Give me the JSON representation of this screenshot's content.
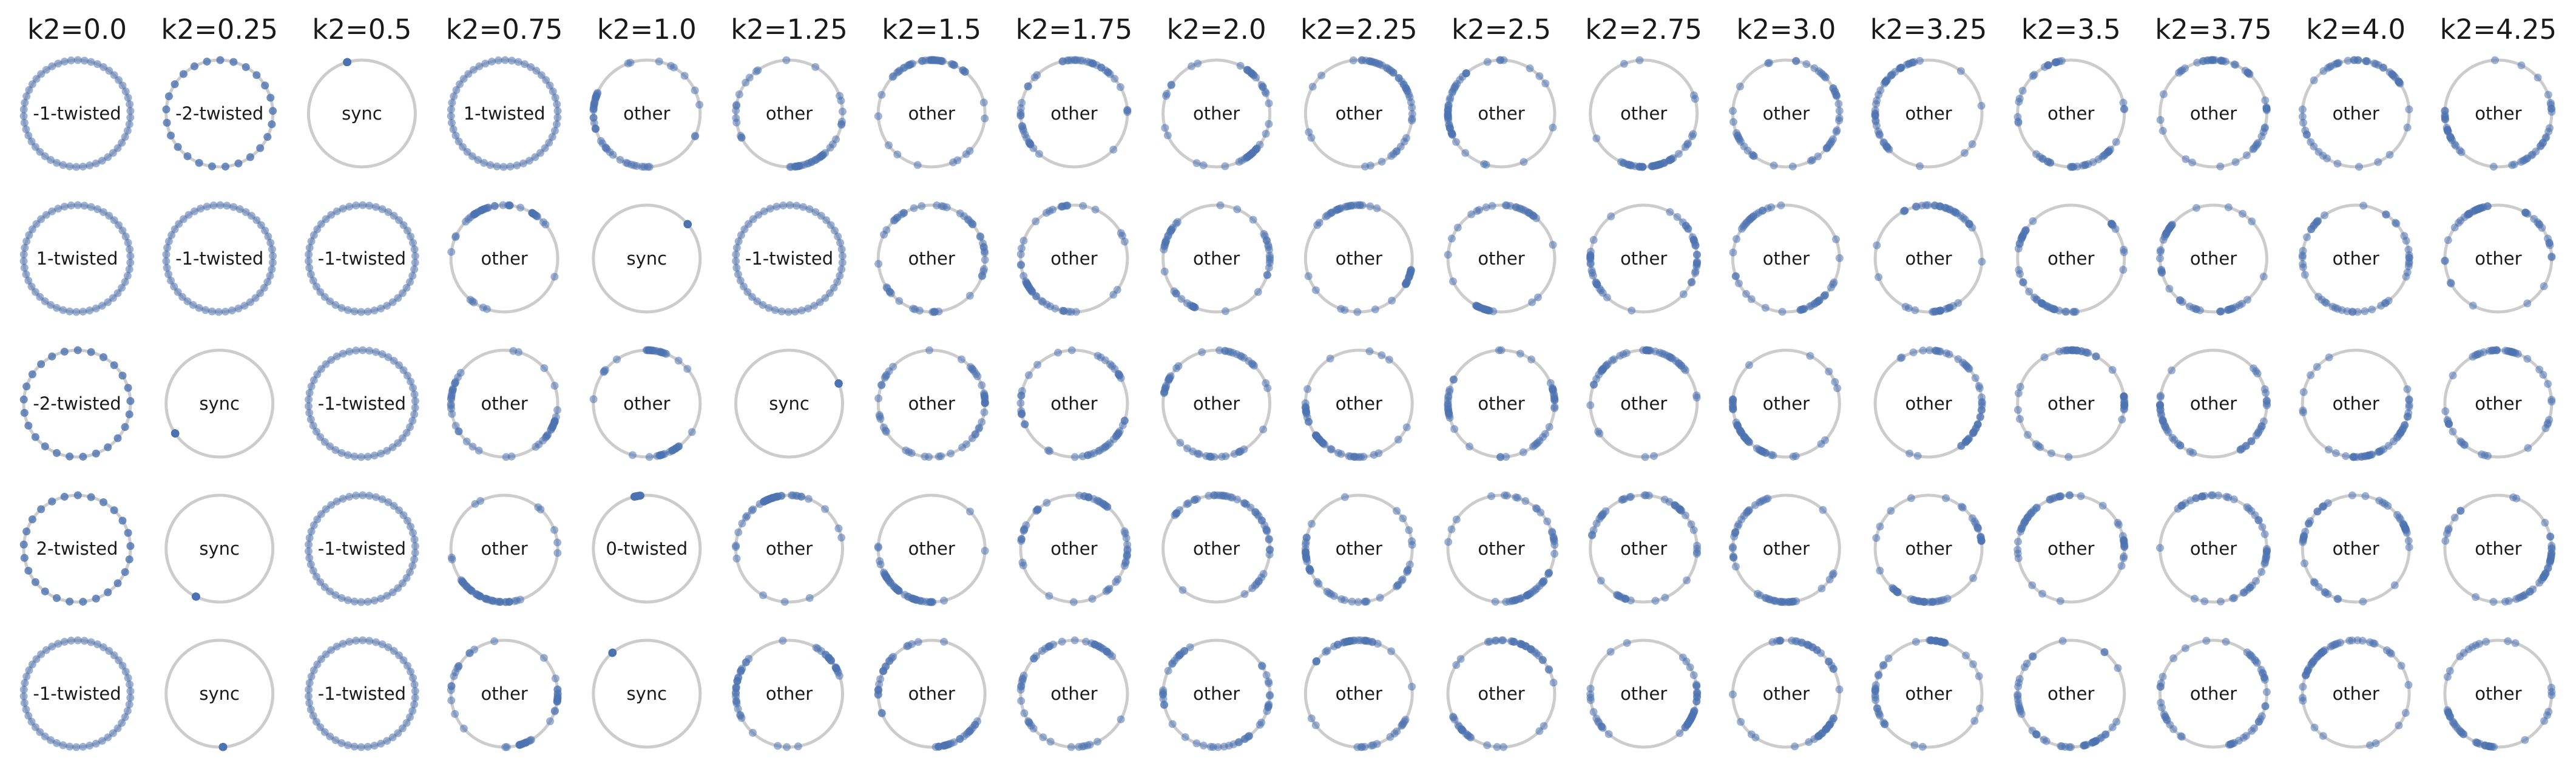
{
  "chart_data": {
    "type": "other",
    "columns": [
      "k2=0.0",
      "k2=0.25",
      "k2=0.5",
      "k2=0.75",
      "k2=1.0",
      "k2=1.25",
      "k2=1.5",
      "k2=1.75",
      "k2=2.0",
      "k2=2.25",
      "k2=2.5",
      "k2=2.75",
      "k2=3.0",
      "k2=3.25",
      "k2=3.5",
      "k2=3.75",
      "k2=4.0",
      "k2=4.25"
    ],
    "k2_values": [
      0.0,
      0.25,
      0.5,
      0.75,
      1.0,
      1.25,
      1.5,
      1.75,
      2.0,
      2.25,
      2.5,
      2.75,
      3.0,
      3.25,
      3.5,
      3.75,
      4.0,
      4.25
    ],
    "labels": [
      [
        "-1-twisted",
        "-2-twisted",
        "sync",
        "1-twisted",
        "other",
        "other",
        "other",
        "other",
        "other",
        "other",
        "other",
        "other",
        "other",
        "other",
        "other",
        "other",
        "other",
        "other"
      ],
      [
        "1-twisted",
        "-1-twisted",
        "-1-twisted",
        "other",
        "sync",
        "-1-twisted",
        "other",
        "other",
        "other",
        "other",
        "other",
        "other",
        "other",
        "other",
        "other",
        "other",
        "other",
        "other"
      ],
      [
        "-2-twisted",
        "sync",
        "-1-twisted",
        "other",
        "other",
        "sync",
        "other",
        "other",
        "other",
        "other",
        "other",
        "other",
        "other",
        "other",
        "other",
        "other",
        "other",
        "other"
      ],
      [
        "2-twisted",
        "sync",
        "-1-twisted",
        "other",
        "0-twisted",
        "other",
        "other",
        "other",
        "other",
        "other",
        "other",
        "other",
        "other",
        "other",
        "other",
        "other",
        "other",
        "other"
      ],
      [
        "-1-twisted",
        "sync",
        "-1-twisted",
        "other",
        "sync",
        "other",
        "other",
        "other",
        "other",
        "other",
        "other",
        "other",
        "other",
        "other",
        "other",
        "other",
        "other",
        "other"
      ]
    ],
    "colors": {
      "oscillator": "#4c72b0",
      "ring": "#cccccc",
      "text": "#1a1a1a"
    }
  }
}
